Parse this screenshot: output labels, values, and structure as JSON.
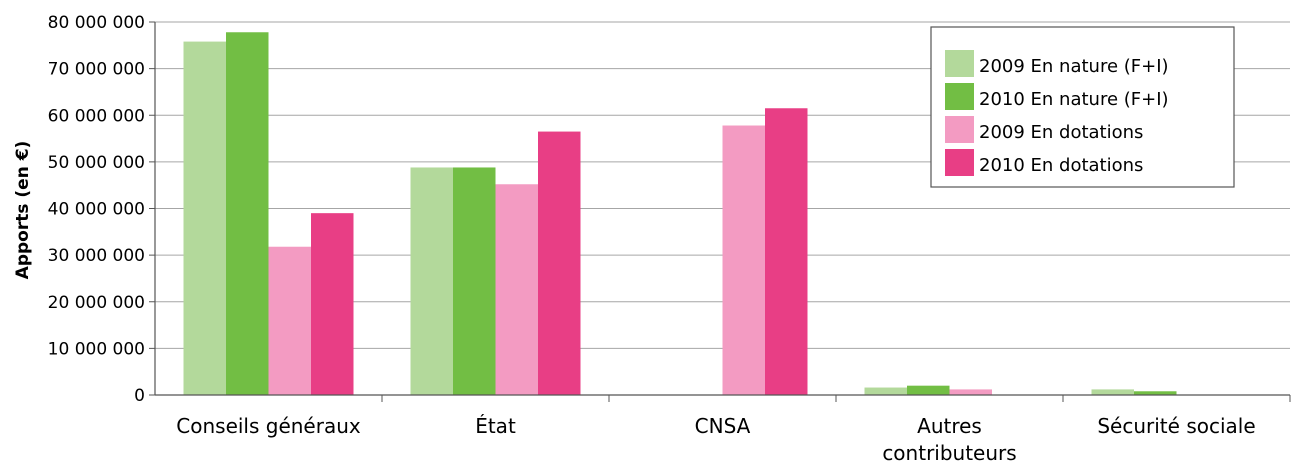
{
  "chart_data": {
    "type": "bar",
    "title": "",
    "xlabel": "",
    "ylabel": "Apports (en €)",
    "ylim": [
      0,
      80000000
    ],
    "yticks": [
      "0",
      "10 000 000",
      "20 000 000",
      "30 000 000",
      "40 000 000",
      "50 000 000",
      "60 000 000",
      "70 000 000",
      "80 000 000"
    ],
    "grid": true,
    "legend_position": "top-right",
    "categories": [
      [
        "Conseils généraux"
      ],
      [
        "État"
      ],
      [
        "CNSA"
      ],
      [
        "Autres",
        "contributeurs"
      ],
      [
        "Sécurité sociale"
      ]
    ],
    "series": [
      {
        "name": "2009 En nature (F+I)",
        "color": "#b3d99b",
        "values": [
          75800000,
          48800000,
          0,
          1600000,
          1200000
        ]
      },
      {
        "name": "2010 En nature (F+I)",
        "color": "#72be44",
        "values": [
          77800000,
          48800000,
          0,
          2000000,
          800000
        ]
      },
      {
        "name": "2009 En dotations",
        "color": "#f39bc2",
        "values": [
          31800000,
          45200000,
          57800000,
          1200000,
          0
        ]
      },
      {
        "name": "2010 En dotations",
        "color": "#e83e85",
        "values": [
          39000000,
          56500000,
          61500000,
          0,
          0
        ]
      }
    ]
  }
}
